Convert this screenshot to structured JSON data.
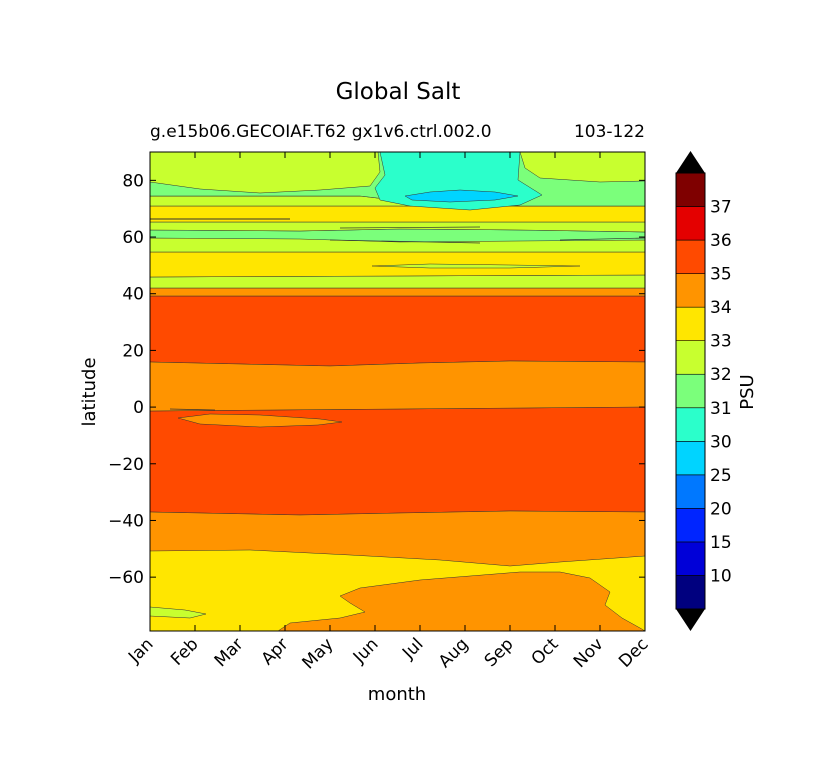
{
  "chart_data": {
    "type": "contour",
    "title": "Global Salt",
    "subtitle_left": "g.e15b06.GECOIAF.T62 gx1v6.ctrl.002.0",
    "subtitle_right": "103-122",
    "xlabel": "month",
    "ylabel": "latitude",
    "colorbar_label": "PSU",
    "x_ticks": [
      "Jan",
      "Feb",
      "Mar",
      "Apr",
      "May",
      "Jun",
      "Jul",
      "Aug",
      "Sep",
      "Oct",
      "Nov",
      "Dec"
    ],
    "y_ticks": [
      80,
      60,
      40,
      20,
      0,
      -20,
      -40,
      -60
    ],
    "ylim": [
      -79,
      90
    ],
    "xlim": [
      1,
      12
    ],
    "levels": [
      5,
      10,
      15,
      20,
      25,
      30,
      31,
      32,
      33,
      34,
      35,
      36,
      37,
      38
    ],
    "colorbar_ticks": [
      "10",
      "15",
      "20",
      "25",
      "30",
      "31",
      "32",
      "33",
      "34",
      "35",
      "36",
      "37"
    ],
    "colorbar_extend": "both",
    "level_colors": [
      "#00007f",
      "#0000d8",
      "#0025ff",
      "#0078ff",
      "#00d4ff",
      "#2bffcb",
      "#7bff7b",
      "#c8ff2f",
      "#ffe600",
      "#ff9400",
      "#ff4a00",
      "#e40000",
      "#7f0000"
    ],
    "extend_colors": {
      "under": "#000000",
      "over": "#000000"
    },
    "zonal_bands": [
      {
        "lat_from": -79,
        "lat_to": -52,
        "psu_range": "33-34"
      },
      {
        "lat_from": -52,
        "lat_to": -38,
        "psu_range": "34-35"
      },
      {
        "lat_from": -38,
        "lat_to": -1,
        "psu_range": "35-36"
      },
      {
        "lat_from": -1,
        "lat_to": 15,
        "psu_range": "34-35"
      },
      {
        "lat_from": 15,
        "lat_to": 39,
        "psu_range": "35-36"
      },
      {
        "lat_from": 39,
        "lat_to": 42,
        "psu_range": "34-35"
      },
      {
        "lat_from": 42,
        "lat_to": 46,
        "psu_range": "32-33"
      },
      {
        "lat_from": 46,
        "lat_to": 54,
        "psu_range": "33-34"
      },
      {
        "lat_from": 54,
        "lat_to": 59,
        "psu_range": "32-33"
      },
      {
        "lat_from": 59,
        "lat_to": 64,
        "psu_range": "31-32"
      },
      {
        "lat_from": 64,
        "lat_to": 70,
        "psu_range": "33-34"
      },
      {
        "lat_from": 70,
        "lat_to": 73,
        "psu_range": "32-33"
      },
      {
        "lat_from": 73,
        "lat_to": 90,
        "psu_range": "32-33"
      }
    ],
    "features": [
      {
        "description": "Southern Ocean region with values 34-35 from mid-year toward December",
        "lat_range": [
          -79,
          -58
        ],
        "month_range": [
          "Apr",
          "Dec"
        ],
        "psu_range": "34-35"
      },
      {
        "description": "Arctic summer freshening with values 30-31",
        "lat_range": [
          72,
          90
        ],
        "month_range": [
          "Jul",
          "Oct"
        ],
        "psu_range": "30-31"
      },
      {
        "description": "Arctic minimum core with values 25-30",
        "lat_range": [
          72,
          77
        ],
        "month_range": [
          "Jul",
          "Sep"
        ],
        "psu_range": "25-30"
      },
      {
        "description": "Equatorial tongue with values 34-35",
        "lat_range": [
          -7,
          -3
        ],
        "month_range": [
          "Feb",
          "May"
        ],
        "psu_range": "34-35"
      }
    ]
  }
}
